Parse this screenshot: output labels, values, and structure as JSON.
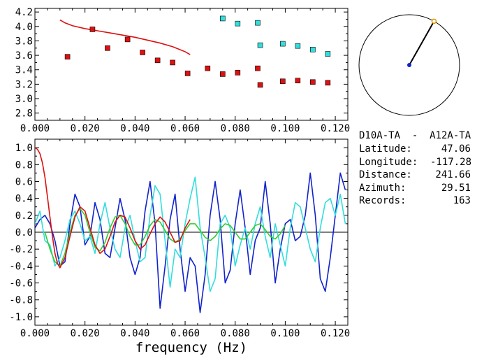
{
  "info": {
    "title": "D10A-TA  -  A12A-TA",
    "rows": [
      {
        "label": "Latitude:",
        "value": "47.06"
      },
      {
        "label": "Longitude:",
        "value": "-117.28"
      },
      {
        "label": "Distance:",
        "value": "241.66"
      },
      {
        "label": "Azimuth:",
        "value": "29.51"
      },
      {
        "label": "Records:",
        "value": "163"
      }
    ]
  },
  "colors": {
    "red": "#dd1111",
    "cyan": "#33dddd",
    "blue": "#1122cc",
    "green": "#33cc33",
    "black": "#000000"
  },
  "chart_data": [
    {
      "type": "scatter",
      "title": "",
      "xlabel": "",
      "ylabel": "",
      "xlim": [
        0.0,
        0.125
      ],
      "ylim": [
        2.7,
        4.25
      ],
      "xticks": [
        "0.000",
        "0.020",
        "0.040",
        "0.060",
        "0.080",
        "0.100",
        "0.120"
      ],
      "yticks": [
        "2.8",
        "3.0",
        "3.2",
        "3.4",
        "3.6",
        "3.8",
        "4.0",
        "4.2"
      ],
      "series": [
        {
          "kind": "line",
          "color": "#dd1111",
          "x": [
            0.01,
            0.012,
            0.015,
            0.02,
            0.025,
            0.03,
            0.035,
            0.04,
            0.045,
            0.05,
            0.055,
            0.06,
            0.062
          ],
          "y": [
            4.09,
            4.05,
            4.01,
            3.97,
            3.94,
            3.91,
            3.88,
            3.85,
            3.81,
            3.77,
            3.72,
            3.65,
            3.61
          ]
        },
        {
          "kind": "points",
          "color": "#dd1111",
          "x": [
            0.013,
            0.023,
            0.029,
            0.037,
            0.043,
            0.049,
            0.055,
            0.061,
            0.069,
            0.075,
            0.081,
            0.089,
            0.09,
            0.099,
            0.105,
            0.111,
            0.117
          ],
          "y": [
            3.58,
            3.96,
            3.7,
            3.82,
            3.64,
            3.53,
            3.5,
            3.35,
            3.42,
            3.34,
            3.36,
            3.42,
            3.19,
            3.24,
            3.25,
            3.23,
            3.22
          ]
        },
        {
          "kind": "points",
          "color": "#33dddd",
          "x": [
            0.075,
            0.081,
            0.089,
            0.09,
            0.099,
            0.105,
            0.111,
            0.117
          ],
          "y": [
            4.11,
            4.04,
            4.05,
            3.74,
            3.76,
            3.73,
            3.68,
            3.62
          ]
        }
      ]
    },
    {
      "type": "line",
      "title": "",
      "xlabel": "frequency (Hz)",
      "ylabel": "",
      "xlim": [
        0.0,
        0.125
      ],
      "ylim": [
        -1.1,
        1.1
      ],
      "xticks": [
        "0.000",
        "0.020",
        "0.040",
        "0.060",
        "0.080",
        "0.100",
        "0.120"
      ],
      "yticks": [
        "-1.0",
        "-0.8",
        "-0.6",
        "-0.4",
        "-0.2",
        "0.0",
        "0.2",
        "0.4",
        "0.6",
        "0.8",
        "1.0"
      ],
      "series": [
        {
          "color": "#1122cc",
          "x": [
            0.0,
            0.002,
            0.004,
            0.006,
            0.008,
            0.01,
            0.012,
            0.014,
            0.016,
            0.018,
            0.02,
            0.022,
            0.024,
            0.026,
            0.028,
            0.03,
            0.032,
            0.034,
            0.036,
            0.038,
            0.04,
            0.042,
            0.044,
            0.046,
            0.048,
            0.05,
            0.052,
            0.054,
            0.056,
            0.058,
            0.06,
            0.062,
            0.064,
            0.066,
            0.068,
            0.07,
            0.072,
            0.074,
            0.076,
            0.078,
            0.08,
            0.082,
            0.084,
            0.086,
            0.088,
            0.09,
            0.092,
            0.094,
            0.096,
            0.098,
            0.1,
            0.102,
            0.104,
            0.106,
            0.108,
            0.11,
            0.112,
            0.114,
            0.116,
            0.118,
            0.12,
            0.122,
            0.124
          ],
          "y": [
            0.05,
            0.15,
            0.2,
            0.1,
            -0.1,
            -0.4,
            -0.35,
            0.1,
            0.45,
            0.3,
            -0.15,
            -0.05,
            0.35,
            0.15,
            -0.25,
            -0.3,
            0.05,
            0.4,
            0.15,
            -0.3,
            -0.5,
            -0.3,
            0.25,
            0.6,
            0.1,
            -0.9,
            -0.4,
            0.15,
            0.45,
            -0.2,
            -0.7,
            -0.3,
            -0.4,
            -0.95,
            -0.5,
            0.2,
            0.6,
            0.15,
            -0.6,
            -0.45,
            0.1,
            0.5,
            0.05,
            -0.5,
            -0.1,
            0.05,
            0.6,
            0.1,
            -0.6,
            -0.2,
            0.1,
            0.15,
            -0.1,
            -0.05,
            0.2,
            0.7,
            0.2,
            -0.55,
            -0.7,
            -0.3,
            0.2,
            0.7,
            0.5
          ]
        },
        {
          "color": "#33dddd",
          "x": [
            0.0,
            0.002,
            0.004,
            0.006,
            0.008,
            0.01,
            0.012,
            0.014,
            0.016,
            0.018,
            0.02,
            0.022,
            0.024,
            0.026,
            0.028,
            0.03,
            0.032,
            0.034,
            0.036,
            0.038,
            0.04,
            0.042,
            0.044,
            0.046,
            0.048,
            0.05,
            0.052,
            0.054,
            0.056,
            0.058,
            0.06,
            0.062,
            0.064,
            0.066,
            0.068,
            0.07,
            0.072,
            0.074,
            0.076,
            0.078,
            0.08,
            0.082,
            0.084,
            0.086,
            0.088,
            0.09,
            0.092,
            0.094,
            0.096,
            0.098,
            0.1,
            0.102,
            0.104,
            0.106,
            0.108,
            0.11,
            0.112,
            0.114,
            0.116,
            0.118,
            0.12,
            0.122,
            0.124
          ],
          "y": [
            0.1,
            0.25,
            -0.1,
            -0.15,
            -0.4,
            -0.3,
            -0.1,
            0.15,
            0.25,
            0.1,
            -0.1,
            -0.05,
            -0.25,
            0.1,
            0.35,
            0.05,
            -0.2,
            -0.3,
            0.05,
            0.2,
            -0.1,
            -0.35,
            -0.3,
            0.2,
            0.55,
            0.45,
            -0.1,
            -0.65,
            -0.2,
            -0.3,
            0.1,
            0.4,
            0.65,
            0.05,
            -0.3,
            -0.7,
            -0.55,
            0.1,
            0.2,
            0.05,
            -0.4,
            -0.15,
            0.05,
            -0.2,
            0.1,
            0.3,
            -0.05,
            -0.3,
            0.1,
            -0.15,
            -0.4,
            0.05,
            0.35,
            0.3,
            0.05,
            -0.2,
            -0.35,
            0.05,
            0.35,
            0.4,
            0.2,
            0.45,
            0.1
          ]
        },
        {
          "color": "#33cc33",
          "x": [
            0.004,
            0.006,
            0.008,
            0.01,
            0.012,
            0.014,
            0.016,
            0.018,
            0.02,
            0.022,
            0.024,
            0.026,
            0.028,
            0.03,
            0.032,
            0.034,
            0.036,
            0.038,
            0.04,
            0.042,
            0.044,
            0.046,
            0.048,
            0.05,
            0.052,
            0.054,
            0.056,
            0.058,
            0.06,
            0.062,
            0.064,
            0.066,
            0.068,
            0.07,
            0.072,
            0.074,
            0.076,
            0.078,
            0.08,
            0.082,
            0.084,
            0.086,
            0.088,
            0.09,
            0.092,
            0.094,
            0.096,
            0.098,
            0.1
          ],
          "y": [
            0.0,
            -0.2,
            -0.35,
            -0.4,
            -0.25,
            0.0,
            0.2,
            0.28,
            0.2,
            0.0,
            -0.18,
            -0.22,
            -0.12,
            0.05,
            0.18,
            0.2,
            0.1,
            -0.05,
            -0.15,
            -0.15,
            -0.05,
            0.08,
            0.15,
            0.12,
            0.02,
            -0.08,
            -0.12,
            -0.08,
            0.02,
            0.1,
            0.1,
            0.02,
            -0.06,
            -0.1,
            -0.05,
            0.04,
            0.1,
            0.08,
            0.0,
            -0.08,
            -0.08,
            0.0,
            0.08,
            0.1,
            0.03,
            -0.05,
            -0.08,
            -0.02,
            0.08
          ]
        },
        {
          "color": "#dd1111",
          "x": [
            0.0,
            0.001,
            0.002,
            0.003,
            0.004,
            0.005,
            0.006,
            0.007,
            0.008,
            0.009,
            0.01,
            0.012,
            0.014,
            0.016,
            0.018,
            0.02,
            0.022,
            0.024,
            0.026,
            0.028,
            0.03,
            0.032,
            0.034,
            0.036,
            0.038,
            0.04,
            0.042,
            0.044,
            0.046,
            0.048,
            0.05,
            0.052,
            0.054,
            0.056,
            0.058,
            0.06,
            0.062
          ],
          "y": [
            1.0,
            0.98,
            0.93,
            0.82,
            0.65,
            0.42,
            0.18,
            -0.05,
            -0.25,
            -0.37,
            -0.42,
            -0.3,
            -0.05,
            0.18,
            0.3,
            0.25,
            0.05,
            -0.15,
            -0.25,
            -0.2,
            -0.05,
            0.12,
            0.2,
            0.18,
            0.05,
            -0.1,
            -0.2,
            -0.15,
            -0.02,
            0.1,
            0.18,
            0.12,
            0.0,
            -0.12,
            -0.1,
            0.05,
            0.15
          ]
        }
      ]
    },
    {
      "type": "polar",
      "title": "",
      "azimuth_deg": 29.51,
      "line_color": "#000000",
      "center_color": "#1122cc",
      "end_color": "#dd9900"
    }
  ]
}
